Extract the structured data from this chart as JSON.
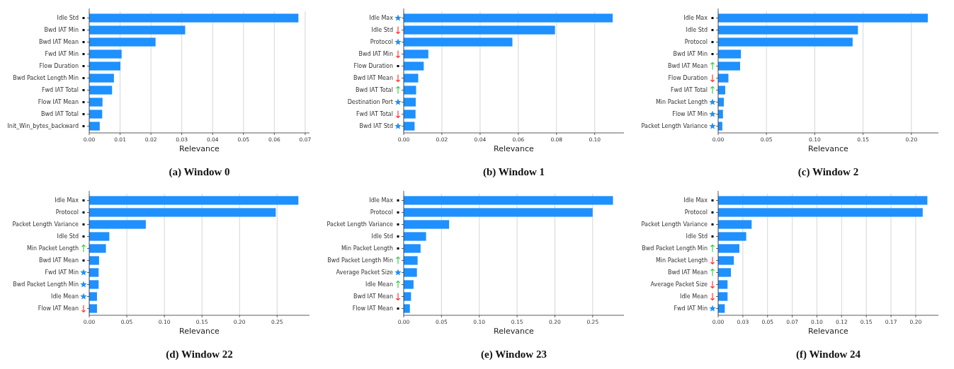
{
  "chart_data": [
    {
      "type": "bar",
      "orientation": "horizontal",
      "title": "(a) Window 0",
      "xlabel": "Relevance",
      "color": "#1e90ff",
      "grid": "x",
      "categories": [
        "Idle Std",
        "Bwd IAT Min",
        "Bwd IAT Mean",
        "Fwd IAT Min",
        "Flow Duration",
        "Bwd Packet Length Min",
        "Fwd IAT Total",
        "Flow IAT Mean",
        "Bwd IAT Total",
        "Init_Win_bytes_backward"
      ],
      "values": [
        0.0678,
        0.0311,
        0.0215,
        0.0105,
        0.0101,
        0.008,
        0.0074,
        0.0043,
        0.0042,
        0.0034
      ],
      "xlim": [
        0,
        0.0714
      ],
      "xticks": [
        {
          "value": 0,
          "label": "0.00"
        },
        {
          "value": 0.01,
          "label": "0.01"
        },
        {
          "value": 0.02,
          "label": "0.02"
        },
        {
          "value": 0.03,
          "label": "0.03"
        },
        {
          "value": 0.04,
          "label": "0.04"
        },
        {
          "value": 0.05,
          "label": "0.05"
        },
        {
          "value": 0.06,
          "label": "0.06"
        },
        {
          "value": 0.07,
          "label": "0.07"
        }
      ]
    },
    {
      "type": "bar",
      "orientation": "horizontal",
      "title": "(b) Window 1",
      "xlabel": "Relevance",
      "color": "#1e90ff",
      "grid": "x",
      "categories": [
        "Idle Max",
        "Idle Std",
        "Protocol",
        "Bwd IAT Min",
        "Flow Duration",
        "Bwd IAT Mean",
        "Bwd IAT Total",
        "Destination Port",
        "Fwd IAT Total",
        "Bwd IAT Std"
      ],
      "values": [
        0.1094,
        0.0792,
        0.0569,
        0.0129,
        0.0105,
        0.0076,
        0.0065,
        0.0063,
        0.0062,
        0.0057
      ],
      "xlim": [
        0,
        0.1153
      ],
      "xticks": [
        {
          "value": 0,
          "label": "0.00"
        },
        {
          "value": 0.02,
          "label": "0.02"
        },
        {
          "value": 0.04,
          "label": "0.04"
        },
        {
          "value": 0.06,
          "label": "0.06"
        },
        {
          "value": 0.08,
          "label": "0.08"
        },
        {
          "value": 0.1,
          "label": "0.10"
        }
      ]
    },
    {
      "type": "bar",
      "orientation": "horizontal",
      "title": "(c) Window 2",
      "xlabel": "Relevance",
      "color": "#1e90ff",
      "grid": "x",
      "categories": [
        "Idle Max",
        "Idle Std",
        "Protocol",
        "Bwd IAT Min",
        "Bwd IAT Mean",
        "Flow Duration",
        "Fwd IAT Total",
        "Min Packet Length",
        "Flow IAT Min",
        "Packet Length Variance"
      ],
      "values": [
        0.217,
        0.1447,
        0.1392,
        0.0236,
        0.0227,
        0.0106,
        0.0073,
        0.0059,
        0.005,
        0.0043
      ],
      "xlim": [
        0,
        0.228
      ],
      "xticks": [
        {
          "value": 0,
          "label": "0.00"
        },
        {
          "value": 0.05,
          "label": "0.05"
        },
        {
          "value": 0.1,
          "label": "0.10"
        },
        {
          "value": 0.15,
          "label": "0.15"
        },
        {
          "value": 0.2,
          "label": "0.20"
        }
      ]
    },
    {
      "type": "bar",
      "orientation": "horizontal",
      "title": "(d) Window 22",
      "xlabel": "Relevance",
      "color": "#1e90ff",
      "grid": "x",
      "categories": [
        "Idle Max",
        "Protocol",
        "Packet Length Variance",
        "Idle Std",
        "Min Packet Length",
        "Bwd IAT Mean",
        "Fwd IAT Min",
        "Bwd Packet Length Min",
        "Idle Mean",
        "Flow IAT Mean"
      ],
      "values": [
        0.2783,
        0.2482,
        0.0753,
        0.0267,
        0.0222,
        0.0131,
        0.0125,
        0.0125,
        0.0103,
        0.0103
      ],
      "xlim": [
        0,
        0.2931
      ],
      "xticks": [
        {
          "value": 0,
          "label": "0.00"
        },
        {
          "value": 0.05,
          "label": "0.05"
        },
        {
          "value": 0.1,
          "label": "0.10"
        },
        {
          "value": 0.15,
          "label": "0.15"
        },
        {
          "value": 0.2,
          "label": "0.20"
        },
        {
          "value": 0.25,
          "label": "0.25"
        }
      ]
    },
    {
      "type": "bar",
      "orientation": "horizontal",
      "title": "(e) Window 23",
      "xlabel": "Relevance",
      "color": "#1e90ff",
      "grid": "x",
      "categories": [
        "Idle Max",
        "Protocol",
        "Packet Length Variance",
        "Idle Std",
        "Min Packet Length",
        "Bwd Packet Length Min",
        "Average Packet Size",
        "Idle Mean",
        "Bwd IAT Mean",
        "Flow IAT Mean"
      ],
      "values": [
        0.2769,
        0.25,
        0.0601,
        0.0296,
        0.0223,
        0.0184,
        0.0175,
        0.013,
        0.0097,
        0.0082
      ],
      "xlim": [
        0,
        0.2914
      ],
      "xticks": [
        {
          "value": 0,
          "label": "0.00"
        },
        {
          "value": 0.05,
          "label": "0.05"
        },
        {
          "value": 0.1,
          "label": "0.10"
        },
        {
          "value": 0.15,
          "label": "0.15"
        },
        {
          "value": 0.2,
          "label": "0.20"
        },
        {
          "value": 0.25,
          "label": "0.25"
        }
      ]
    },
    {
      "type": "bar",
      "orientation": "horizontal",
      "title": "(f) Window 24",
      "xlabel": "Relevance",
      "color": "#1e90ff",
      "grid": "x",
      "categories": [
        "Idle Max",
        "Protocol",
        "Packet Length Variance",
        "Idle Std",
        "Bwd Packet Length Min",
        "Min Packet Length",
        "Bwd IAT Mean",
        "Average Packet Size",
        "Idle Mean",
        "Fwd IAT Min"
      ],
      "values": [
        0.2118,
        0.2071,
        0.0339,
        0.0284,
        0.0215,
        0.0159,
        0.0129,
        0.0095,
        0.0095,
        0.0067
      ],
      "xlim": [
        0,
        0.223
      ],
      "xticks": [
        {
          "value": 0,
          "label": "0.00"
        },
        {
          "value": 0.025,
          "label": "0.03"
        },
        {
          "value": 0.05,
          "label": "0.05"
        },
        {
          "value": 0.075,
          "label": "0.07"
        },
        {
          "value": 0.1,
          "label": "0.10"
        },
        {
          "value": 0.125,
          "label": "0.12"
        },
        {
          "value": 0.15,
          "label": "0.15"
        },
        {
          "value": 0.175,
          "label": "0.17"
        },
        {
          "value": 0.2,
          "label": "0.20"
        }
      ]
    }
  ]
}
